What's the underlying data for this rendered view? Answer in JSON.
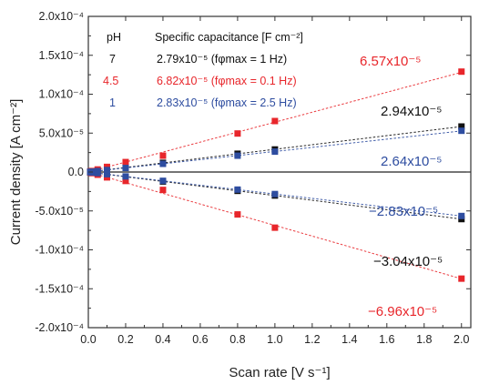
{
  "chart_data": {
    "type": "scatter",
    "xlabel": "Scan rate [V s⁻¹]",
    "ylabel": "Current density [A cm⁻²]",
    "xlim": [
      0,
      2.05
    ],
    "ylim": [
      -0.0002,
      0.0002
    ],
    "x_ticks": [
      "0.0",
      "0.2",
      "0.4",
      "0.6",
      "0.8",
      "1.0",
      "1.2",
      "1.4",
      "1.6",
      "1.8",
      "2.0"
    ],
    "y_ticks": [
      {
        "value": 0.0002,
        "label": "2.0x10⁻⁴"
      },
      {
        "value": 0.00015,
        "label": "1.5x10⁻⁴"
      },
      {
        "value": 0.0001,
        "label": "1.0x10⁻⁴"
      },
      {
        "value": 5e-05,
        "label": "5.0x10⁻⁵"
      },
      {
        "value": 0,
        "label": "0.0"
      },
      {
        "value": -5e-05,
        "label": "-5.0x10⁻⁵"
      },
      {
        "value": -0.0001,
        "label": "-1.0x10⁻⁴"
      },
      {
        "value": -0.00015,
        "label": "-1.5x10⁻⁴"
      },
      {
        "value": -0.0002,
        "label": "-2.0x10⁻⁴"
      }
    ],
    "legend": {
      "header_ph": "pH",
      "header_cap": "Specific capacitance [F cm⁻²]",
      "rows": [
        {
          "ph": "7",
          "cap": "2.79x10⁻⁵ (fφmax = 1 Hz)",
          "color": "#111111"
        },
        {
          "ph": "4.5",
          "cap": "6.82x10⁻⁵ (fφmax = 0.1 Hz)",
          "color": "#e8262b"
        },
        {
          "ph": "1",
          "cap": "2.83x10⁻⁵ (fφmax = 2.5 Hz)",
          "color": "#2e4da0"
        }
      ]
    },
    "series": [
      {
        "ph": "7",
        "color": "#111111",
        "x": [
          0.01,
          0.02,
          0.05,
          0.1,
          0.2,
          0.4,
          0.8,
          1.0,
          2.0
        ],
        "anodic": [
          3e-07,
          6e-07,
          1.5e-06,
          3e-06,
          5.9e-06,
          1.18e-05,
          2.35e-05,
          2.9e-05,
          5.85e-05
        ],
        "cathodic": [
          -3e-07,
          -6e-07,
          -1.5e-06,
          -3.1e-06,
          -6.1e-06,
          -1.22e-05,
          -2.42e-05,
          -3.02e-05,
          -6.05e-05
        ],
        "anodic_slope": "2.94x10⁻⁵",
        "cathodic_slope": "−3.04x10⁻⁵"
      },
      {
        "ph": "4.5",
        "color": "#e8262b",
        "x": [
          0.01,
          0.02,
          0.05,
          0.1,
          0.2,
          0.4,
          0.8,
          1.0,
          2.0
        ],
        "anodic": [
          7e-07,
          1.3e-06,
          3.3e-06,
          6.6e-06,
          1.28e-05,
          2.1e-05,
          4.95e-05,
          6.55e-05,
          0.000129
        ],
        "cathodic": [
          -7e-07,
          -1.4e-06,
          -3.5e-06,
          -6.9e-06,
          -1.15e-05,
          -2.3e-05,
          -5.45e-05,
          -7.15e-05,
          -0.000137
        ],
        "anodic_slope": "6.57x10⁻⁵",
        "cathodic_slope": "−6.96x10⁻⁵"
      },
      {
        "ph": "1",
        "color": "#2e4da0",
        "x": [
          0.01,
          0.02,
          0.05,
          0.1,
          0.2,
          0.4,
          0.8,
          1.0,
          2.0
        ],
        "anodic": [
          3e-07,
          5e-07,
          1.3e-06,
          2.6e-06,
          5.2e-06,
          1.05e-05,
          2.1e-05,
          2.62e-05,
          5.3e-05
        ],
        "cathodic": [
          -3e-07,
          -6e-07,
          -1.4e-06,
          -2.8e-06,
          -5.7e-06,
          -1.13e-05,
          -2.26e-05,
          -2.83e-05,
          -5.65e-05
        ],
        "anodic_slope": "2.64x10⁻⁵",
        "cathodic_slope": "−2.83x10⁻⁵"
      }
    ]
  }
}
